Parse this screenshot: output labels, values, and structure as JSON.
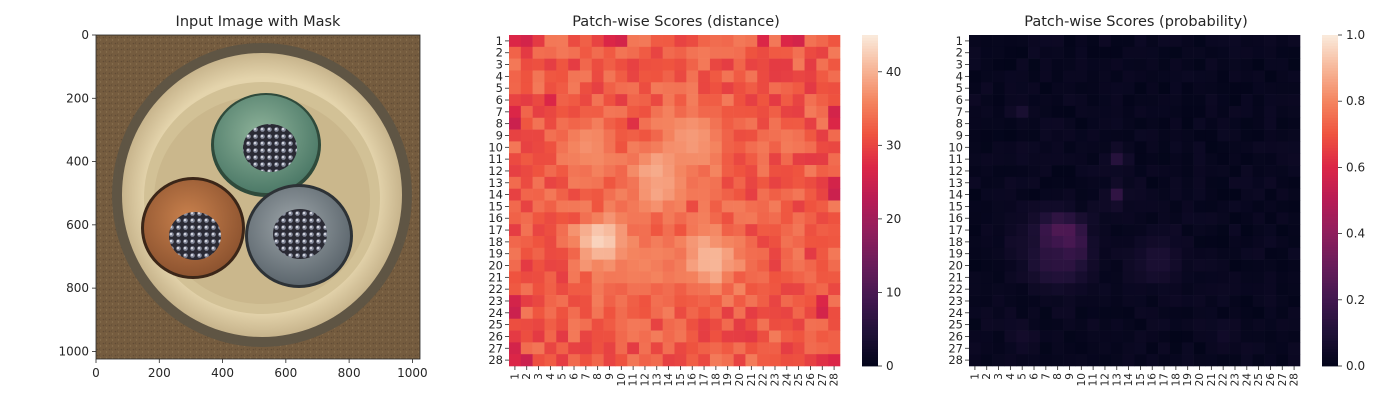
{
  "chart_data": [
    {
      "type": "image",
      "title": "Input Image with Mask",
      "x_ticks": [
        "0",
        "200",
        "400",
        "600",
        "800",
        "1000"
      ],
      "y_ticks": [
        "0",
        "200",
        "400",
        "600",
        "800",
        "1000"
      ],
      "xlim": [
        0,
        1024
      ],
      "ylim": [
        1024,
        0
      ],
      "content": "Top-down photo of a cable cross-section: three insulated conductors (green, brown, grey) with stranded copper cores inside a beige jacket on a brown background"
    },
    {
      "type": "heatmap",
      "title": "Patch-wise Scores (distance)",
      "rows": 28,
      "cols": 28,
      "row_labels": [
        "1",
        "2",
        "3",
        "4",
        "5",
        "6",
        "7",
        "8",
        "9",
        "10",
        "11",
        "12",
        "13",
        "14",
        "15",
        "16",
        "17",
        "18",
        "19",
        "20",
        "21",
        "22",
        "23",
        "24",
        "25",
        "26",
        "27",
        "28"
      ],
      "col_labels": [
        "1",
        "2",
        "3",
        "4",
        "5",
        "6",
        "7",
        "8",
        "9",
        "10",
        "11",
        "12",
        "13",
        "14",
        "15",
        "16",
        "17",
        "18",
        "19",
        "20",
        "21",
        "22",
        "23",
        "24",
        "25",
        "26",
        "27",
        "28"
      ],
      "colormap": "rocket",
      "vmin": 0,
      "vmax": 45,
      "colorbar_ticks": [
        "0",
        "10",
        "20",
        "30",
        "40"
      ],
      "colorbar_values": [
        0,
        10,
        20,
        30,
        40
      ],
      "base_value": 32,
      "hotspots": [
        {
          "row": 18,
          "col": 8.5,
          "value": 44,
          "radius": 1.6
        },
        {
          "row": 19.5,
          "col": 17.5,
          "value": 41,
          "radius": 1.8
        },
        {
          "row": 12,
          "col": 13,
          "value": 40,
          "radius": 1.4
        },
        {
          "row": 14,
          "col": 13,
          "value": 39,
          "radius": 1.2
        },
        {
          "row": 9.5,
          "col": 16,
          "value": 38,
          "radius": 2.2
        },
        {
          "row": 10,
          "col": 7,
          "value": 37,
          "radius": 1.8
        },
        {
          "row": 20,
          "col": 12,
          "value": 36,
          "radius": 2
        }
      ],
      "cold_spots": [
        {
          "row": 1,
          "col": 1,
          "value": 27
        },
        {
          "row": 1,
          "col": 2,
          "value": 26
        },
        {
          "row": 1,
          "col": 3,
          "value": 29
        },
        {
          "row": 1,
          "col": 9,
          "value": 27
        },
        {
          "row": 1,
          "col": 10,
          "value": 26
        },
        {
          "row": 1,
          "col": 22,
          "value": 27
        },
        {
          "row": 1,
          "col": 24,
          "value": 27
        },
        {
          "row": 1,
          "col": 25,
          "value": 26
        },
        {
          "row": 7,
          "col": 1,
          "value": 27
        },
        {
          "row": 8,
          "col": 1,
          "value": 25
        },
        {
          "row": 6,
          "col": 4,
          "value": 27
        },
        {
          "row": 7,
          "col": 28,
          "value": 26
        },
        {
          "row": 8,
          "col": 28,
          "value": 27
        },
        {
          "row": 13,
          "col": 28,
          "value": 26
        },
        {
          "row": 14,
          "col": 28,
          "value": 25
        },
        {
          "row": 8,
          "col": 11,
          "value": 28
        },
        {
          "row": 23,
          "col": 1,
          "value": 26
        },
        {
          "row": 24,
          "col": 1,
          "value": 25
        },
        {
          "row": 23,
          "col": 27,
          "value": 27
        },
        {
          "row": 24,
          "col": 27,
          "value": 26
        },
        {
          "row": 27,
          "col": 1,
          "value": 26
        },
        {
          "row": 28,
          "col": 1,
          "value": 27
        },
        {
          "row": 28,
          "col": 2,
          "value": 25
        },
        {
          "row": 28,
          "col": 27,
          "value": 28
        },
        {
          "row": 28,
          "col": 28,
          "value": 27
        }
      ]
    },
    {
      "type": "heatmap",
      "title": "Patch-wise Scores (probability)",
      "rows": 28,
      "cols": 28,
      "row_labels": [
        "1",
        "2",
        "3",
        "4",
        "5",
        "6",
        "7",
        "8",
        "9",
        "10",
        "11",
        "12",
        "13",
        "14",
        "15",
        "16",
        "17",
        "18",
        "19",
        "20",
        "21",
        "22",
        "23",
        "24",
        "25",
        "26",
        "27",
        "28"
      ],
      "col_labels": [
        "1",
        "2",
        "3",
        "4",
        "5",
        "6",
        "7",
        "8",
        "9",
        "10",
        "11",
        "12",
        "13",
        "14",
        "15",
        "16",
        "17",
        "18",
        "19",
        "20",
        "21",
        "22",
        "23",
        "24",
        "25",
        "26",
        "27",
        "28"
      ],
      "colormap": "rocket",
      "vmin": 0,
      "vmax": 1,
      "colorbar_ticks": [
        "0.0",
        "0.2",
        "0.4",
        "0.6",
        "0.8",
        "1.0"
      ],
      "colorbar_values": [
        0,
        0.2,
        0.4,
        0.6,
        0.8,
        1.0
      ],
      "base_value": 0.0,
      "hotspots": [
        {
          "row": 18,
          "col": 8.5,
          "value": 0.36,
          "radius": 1.0
        },
        {
          "row": 18,
          "col": 8,
          "value": 0.3,
          "radius": 1.4
        },
        {
          "row": 19.5,
          "col": 8,
          "value": 0.14,
          "radius": 1.6
        },
        {
          "row": 19.5,
          "col": 16.5,
          "value": 0.09,
          "radius": 1.5
        },
        {
          "row": 11,
          "col": 13,
          "value": 0.12,
          "radius": 0.6
        },
        {
          "row": 14,
          "col": 13,
          "value": 0.15,
          "radius": 0.6
        },
        {
          "row": 7,
          "col": 5,
          "value": 0.08,
          "radius": 0.6
        },
        {
          "row": 18,
          "col": 5,
          "value": 0.06,
          "radius": 1.2
        },
        {
          "row": 26,
          "col": 5,
          "value": 0.06,
          "radius": 0.8
        },
        {
          "row": 26,
          "col": 22,
          "value": 0.05,
          "radius": 0.8
        }
      ]
    }
  ]
}
